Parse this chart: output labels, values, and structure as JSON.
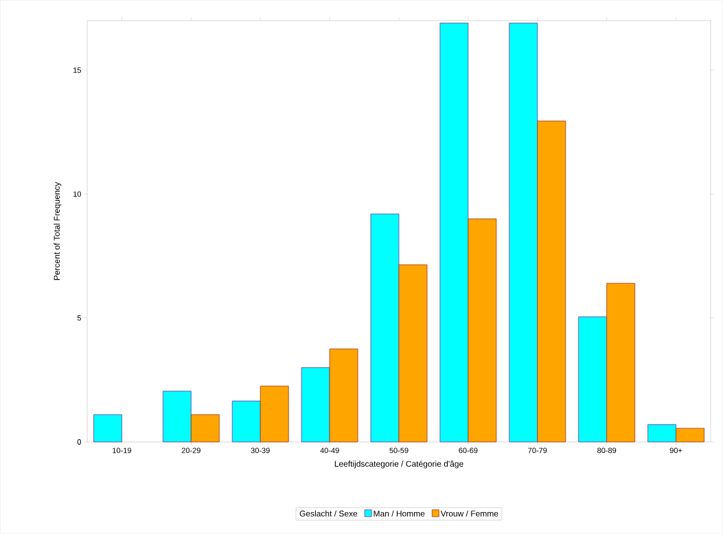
{
  "chart_data": {
    "type": "bar",
    "xlabel": "Leeftijdscategorie / Catégorie d'âge",
    "ylabel": "Percent of Total Frequency",
    "legend_title": "Geslacht / Sexe",
    "legend": "bottom",
    "categories": [
      "10-19",
      "20-29",
      "30-39",
      "40-49",
      "50-59",
      "60-69",
      "70-79",
      "80-89",
      "90+"
    ],
    "series": [
      {
        "name": "Man / Homme",
        "color": "#00ffff",
        "values": [
          1.1,
          2.05,
          1.65,
          3.0,
          9.2,
          16.9,
          16.9,
          5.05,
          0.7
        ]
      },
      {
        "name": "Vrouw / Femme",
        "color": "#ffa500",
        "values": [
          null,
          1.1,
          2.25,
          3.75,
          7.15,
          9.0,
          12.95,
          6.4,
          0.55
        ]
      }
    ],
    "ylim": [
      0,
      17
    ],
    "yticks": [
      0,
      5,
      10,
      15
    ]
  }
}
